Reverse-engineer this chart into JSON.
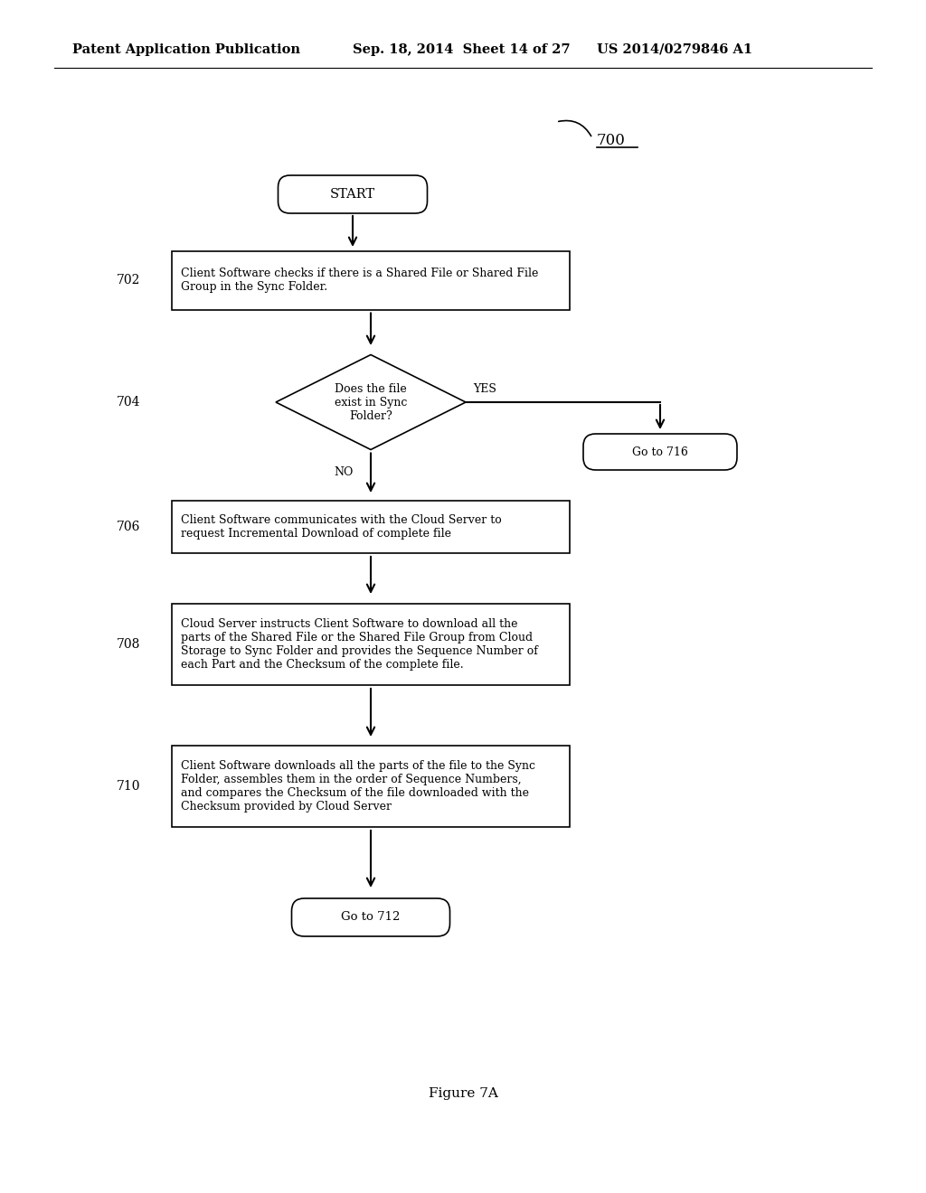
{
  "bg_color": "#ffffff",
  "header_left": "Patent Application Publication",
  "header_mid": "Sep. 18, 2014  Sheet 14 of 27",
  "header_right": "US 2014/0279846 A1",
  "figure_label": "Figure 7A",
  "diagram_number": "700",
  "start_text": "START",
  "box702_text": "Client Software checks if there is a Shared File or Shared File\nGroup in the Sync Folder.",
  "box702_label": "702",
  "diamond704_text": "Does the file\nexist in Sync\nFolder?",
  "diamond704_label": "704",
  "yes_text": "YES",
  "no_text": "NO",
  "goto716_text": "Go to 716",
  "box706_text": "Client Software communicates with the Cloud Server to\nrequest Incremental Download of complete file",
  "box706_label": "706",
  "box708_text": "Cloud Server instructs Client Software to download all the\nparts of the Shared File or the Shared File Group from Cloud\nStorage to Sync Folder and provides the Sequence Number of\neach Part and the Checksum of the complete file.",
  "box708_label": "708",
  "box710_text": "Client Software downloads all the parts of the file to the Sync\nFolder, assembles them in the order of Sequence Numbers,\nand compares the Checksum of the file downloaded with the\nChecksum provided by Cloud Server",
  "box710_label": "710",
  "goto712_text": "Go to 712",
  "header_fontsize": 10.5,
  "body_fontsize": 9.0,
  "label_fontsize": 10.0,
  "fig_label_fontsize": 11.0
}
